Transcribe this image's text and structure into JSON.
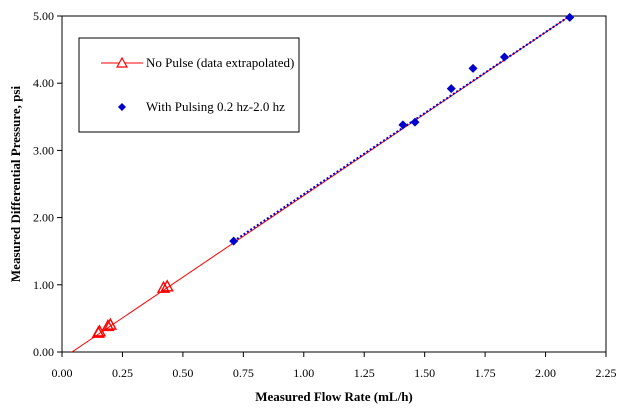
{
  "chart_data": {
    "type": "scatter",
    "xlabel": "Measured Flow Rate (mL/h)",
    "ylabel": "Measured Differential Pressure, psi",
    "xlim": [
      0,
      2.25
    ],
    "ylim": [
      0,
      5
    ],
    "xticks": [
      "0.00",
      "0.25",
      "0.50",
      "0.75",
      "1.00",
      "1.25",
      "1.50",
      "1.75",
      "2.00",
      "2.25"
    ],
    "yticks": [
      "0.00",
      "1.00",
      "2.00",
      "3.00",
      "4.00",
      "5.00"
    ],
    "grid": false,
    "legend_position": "top-left",
    "series": [
      {
        "name": "No Pulse (data extrapolated)",
        "marker": "triangle",
        "color": "#ff0000",
        "points": [
          {
            "x": 0.15,
            "y": 0.28
          },
          {
            "x": 0.155,
            "y": 0.3
          },
          {
            "x": 0.19,
            "y": 0.38
          },
          {
            "x": 0.2,
            "y": 0.4
          },
          {
            "x": 0.42,
            "y": 0.95
          },
          {
            "x": 0.435,
            "y": 0.97
          }
        ],
        "fit": {
          "x": [
            0.0,
            2.1
          ],
          "y": [
            -0.1,
            5.0
          ],
          "color": "#ff0000",
          "style": "solid"
        }
      },
      {
        "name": "With Pulsing 0.2 hz-2.0 hz",
        "marker": "diamond",
        "color": "#0000cc",
        "points": [
          {
            "x": 0.71,
            "y": 1.65
          },
          {
            "x": 1.41,
            "y": 3.38
          },
          {
            "x": 1.46,
            "y": 3.42
          },
          {
            "x": 1.61,
            "y": 3.92
          },
          {
            "x": 1.7,
            "y": 4.22
          },
          {
            "x": 1.83,
            "y": 4.39
          },
          {
            "x": 2.1,
            "y": 4.98
          }
        ],
        "fit": {
          "x": [
            0.71,
            2.1
          ],
          "y": [
            1.65,
            5.0
          ],
          "color": "#0000cc",
          "style": "dotted"
        }
      }
    ]
  }
}
